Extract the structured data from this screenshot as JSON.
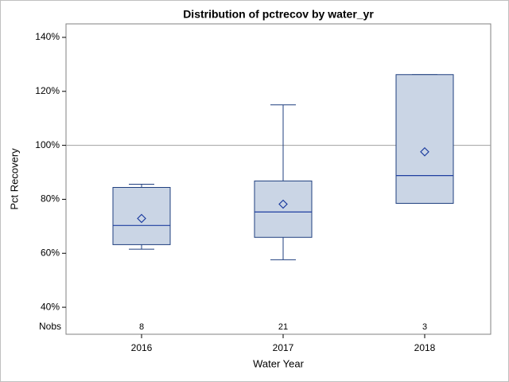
{
  "chart_data": {
    "type": "box",
    "title": "Distribution of pctrecov by water_yr",
    "x_label": "Water Year",
    "y_label": "Pct Recovery",
    "categories": [
      "2016",
      "2017",
      "2018"
    ],
    "min": [
      61.5,
      57.6,
      78.5
    ],
    "q1": [
      63.2,
      65.9,
      78.5
    ],
    "median": [
      70.3,
      75.3,
      88.8
    ],
    "q3": [
      84.4,
      86.8,
      126.2
    ],
    "max": [
      85.6,
      115.0,
      126.2
    ],
    "mean": [
      72.9,
      78.2,
      97.6
    ],
    "nobs_label": "Nobs",
    "nobs": [
      8,
      21,
      3
    ],
    "refline": 100,
    "color": "#cad5e5",
    "edge_color": "#1f3f7f",
    "median_color": "#1f3fa0",
    "refline_color": "#a0a0a0",
    "ylim": [
      30,
      145
    ],
    "yticks": [
      {
        "value": 40,
        "label": "40%"
      },
      {
        "value": 60,
        "label": "60%"
      },
      {
        "value": 80,
        "label": "80%"
      },
      {
        "value": 100,
        "label": "100%"
      },
      {
        "value": 120,
        "label": "120%"
      },
      {
        "value": 140,
        "label": "140%"
      }
    ]
  }
}
